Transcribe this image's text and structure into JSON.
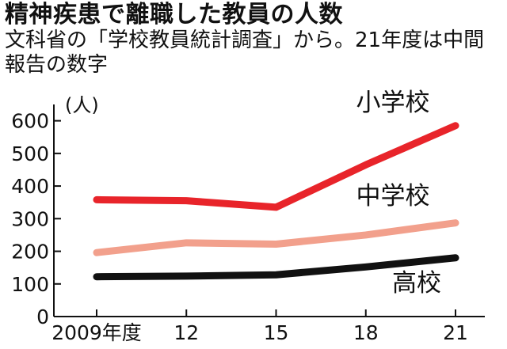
{
  "title": "精神疾患で離職した教員の人数",
  "subtitle": "文科省の「学校教員統計調査」から。21年度は中間報告の数字",
  "chart_data": {
    "type": "line",
    "title": "精神疾患で離職した教員の人数",
    "subtitle": "文科省の「学校教員統計調査」から。21年度は中間報告の数字",
    "xlabel": "",
    "ylabel": "(人)",
    "categories": [
      "2009年度",
      "12",
      "15",
      "18",
      "21"
    ],
    "y_ticks": [
      0,
      100,
      200,
      300,
      400,
      500,
      600
    ],
    "ylim": [
      0,
      650
    ],
    "grid": false,
    "legend": "inline labels next to lines",
    "series": [
      {
        "name": "小学校",
        "color": "#e8242a",
        "values": [
          358,
          355,
          335,
          465,
          585
        ]
      },
      {
        "name": "中学校",
        "color": "#f2a08c",
        "values": [
          196,
          226,
          222,
          250,
          287
        ]
      },
      {
        "name": "高校",
        "color": "#111111",
        "values": [
          122,
          124,
          128,
          152,
          180
        ]
      }
    ]
  }
}
